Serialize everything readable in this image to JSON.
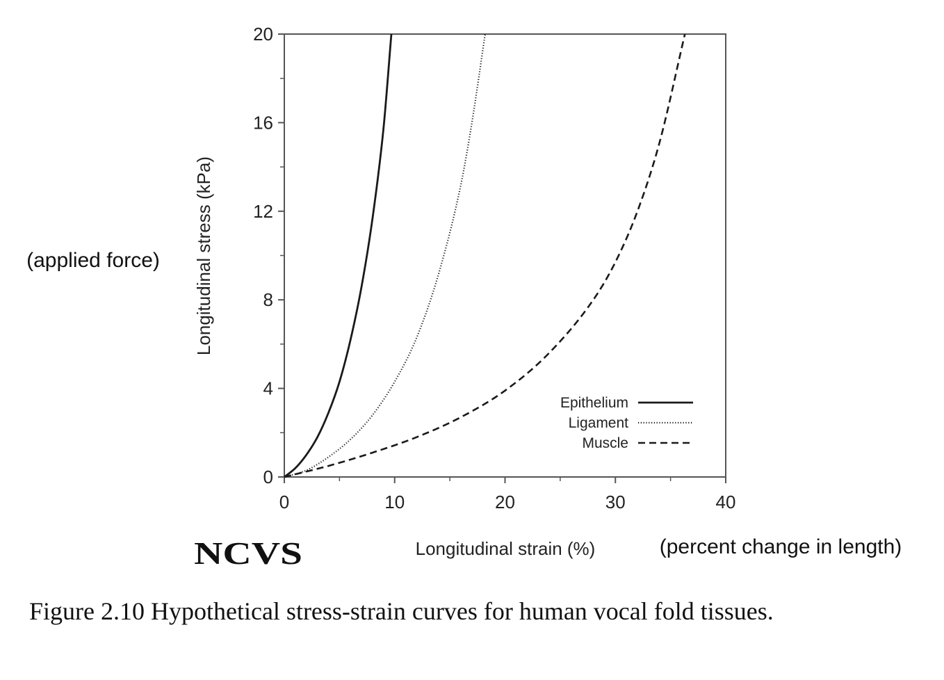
{
  "chart_data": {
    "type": "line",
    "xlabel": "Longitudinal strain (%)",
    "ylabel": "Longitudinal stress (kPa)",
    "xlim": [
      0,
      40
    ],
    "ylim": [
      0,
      20
    ],
    "xticks": [
      "0",
      "10",
      "20",
      "30",
      "40"
    ],
    "yticks": [
      "0",
      "4",
      "8",
      "12",
      "16",
      "20"
    ],
    "grid": false,
    "legend_position": "bottom-right",
    "series": [
      {
        "name": "Epithelium",
        "line_style": "solid",
        "x": [
          0,
          1,
          2,
          3,
          4,
          5,
          6,
          7,
          8,
          9,
          9.7
        ],
        "y": [
          0,
          0.4,
          1.0,
          1.8,
          2.9,
          4.3,
          6.2,
          8.6,
          11.7,
          15.8,
          20
        ]
      },
      {
        "name": "Ligament",
        "line_style": "dotted",
        "x": [
          0,
          2,
          4,
          6,
          8,
          10,
          12,
          14,
          16,
          17,
          18.2
        ],
        "y": [
          0,
          0.3,
          0.9,
          1.7,
          2.8,
          4.3,
          6.3,
          9.2,
          13.2,
          16.0,
          20
        ]
      },
      {
        "name": "Muscle",
        "line_style": "dashed",
        "x": [
          0,
          4,
          8,
          12,
          16,
          20,
          24,
          28,
          30,
          32,
          34,
          36.3
        ],
        "y": [
          0,
          0.5,
          1.1,
          1.8,
          2.7,
          3.9,
          5.6,
          8.0,
          9.7,
          12.0,
          15.1,
          20
        ]
      }
    ]
  },
  "annotations": {
    "y_note": "(applied force)",
    "x_note": "(percent change in length)",
    "logo_text": "NCVS"
  },
  "caption": "Figure 2.10 Hypothetical stress-strain curves for human vocal fold tissues."
}
